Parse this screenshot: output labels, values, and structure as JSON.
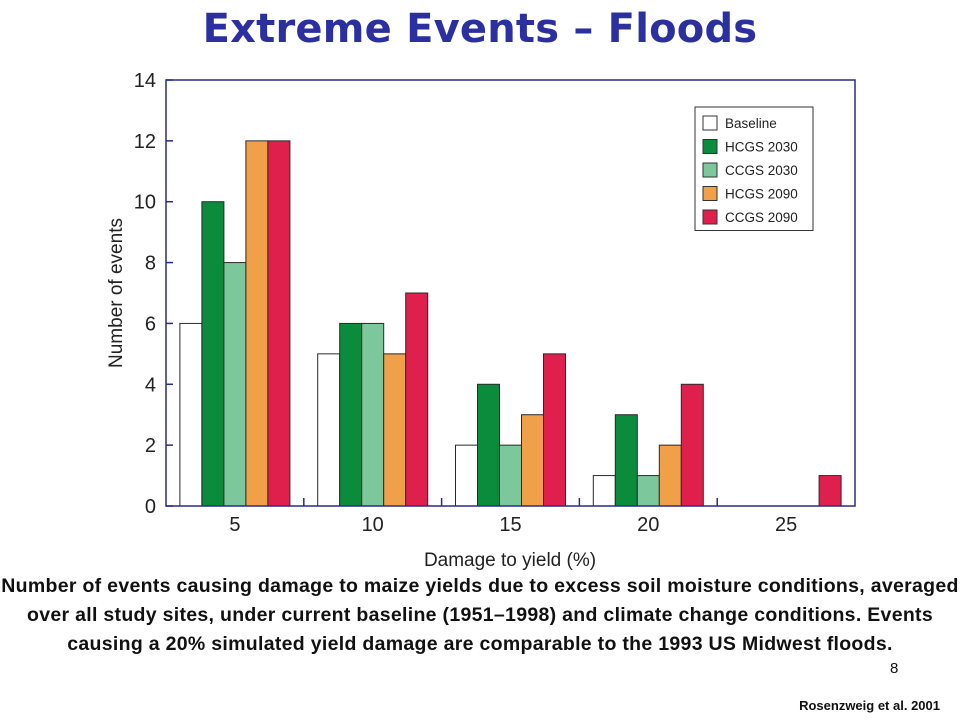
{
  "slide": {
    "title": "Extreme Events – Floods",
    "caption": "Number of events causing damage to maize yields due to excess soil moisture conditions, averaged over all study sites, under current baseline (1951–1998) and climate change conditions. Events causing a 20% simulated yield damage are comparable to the 1993 US Midwest floods.",
    "page_number": "8",
    "citation": "Rosenzweig et al. 2001"
  },
  "chart_data": {
    "type": "bar",
    "xlabel": "Damage to yield (%)",
    "ylabel": "Number of events",
    "ylim": [
      0,
      14
    ],
    "yticks": [
      "0",
      "2",
      "4",
      "6",
      "8",
      "10",
      "12",
      "14"
    ],
    "categories": [
      "5",
      "10",
      "15",
      "20",
      "25"
    ],
    "legend_position": "top-right",
    "grid": false,
    "series": [
      {
        "name": "Baseline",
        "color": "#ffffff",
        "values": [
          6,
          5,
          2,
          1,
          0
        ]
      },
      {
        "name": "HCGS 2030",
        "color": "#0a8c3c",
        "values": [
          10,
          6,
          4,
          3,
          0
        ]
      },
      {
        "name": "CCGS 2030",
        "color": "#7dc79c",
        "values": [
          8,
          6,
          2,
          1,
          0
        ]
      },
      {
        "name": "HCGS 2090",
        "color": "#f0a048",
        "values": [
          12,
          5,
          3,
          2,
          0
        ]
      },
      {
        "name": "CCGS 2090",
        "color": "#e0204c",
        "values": [
          12,
          7,
          5,
          4,
          1
        ]
      }
    ],
    "axis_color": "#2a2a8a"
  }
}
